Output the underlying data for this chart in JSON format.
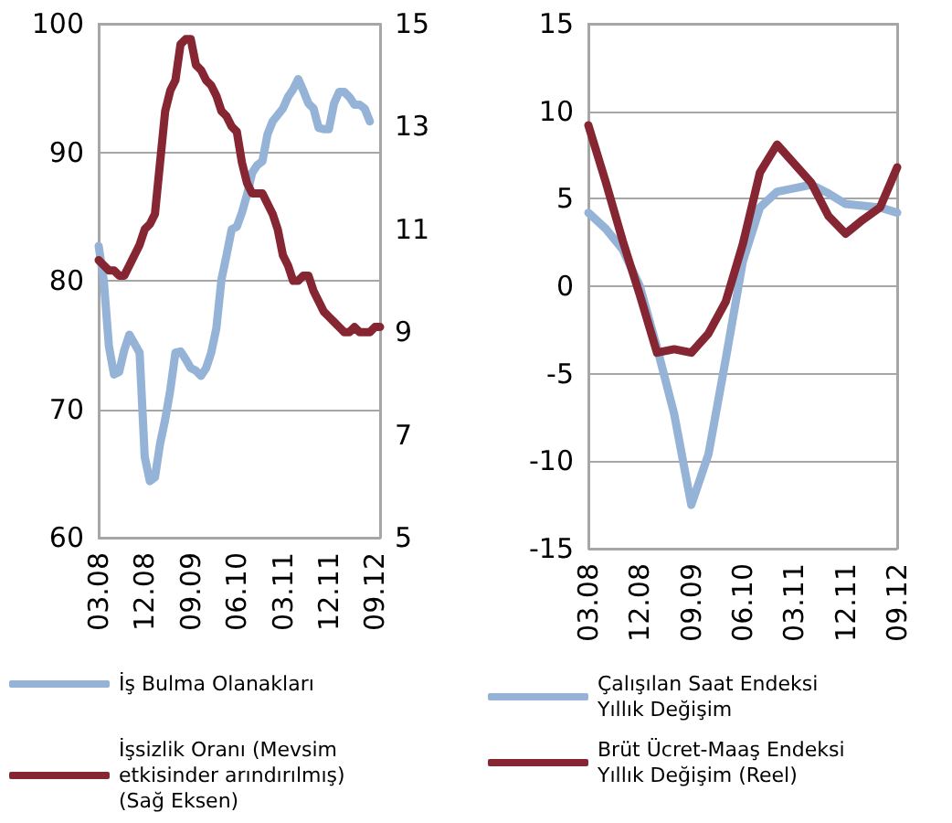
{
  "chart_data": [
    {
      "type": "line",
      "categories": [
        "03.08",
        null,
        null,
        null,
        null,
        null,
        null,
        null,
        null,
        "12.08",
        null,
        null,
        null,
        null,
        null,
        null,
        null,
        null,
        "09.09",
        null,
        null,
        null,
        null,
        null,
        null,
        null,
        null,
        "06.10",
        null,
        null,
        null,
        null,
        null,
        null,
        null,
        null,
        "03.11",
        null,
        null,
        null,
        null,
        null,
        null,
        null,
        null,
        "12.11",
        null,
        null,
        null,
        null,
        null,
        null,
        null,
        null,
        "09.12",
        null
      ],
      "series": [
        {
          "name": "İş Bulma Olanakları",
          "color": "#95b3d7",
          "values": [
            82.7,
            80.0,
            74.9,
            72.7,
            72.9,
            74.6,
            75.8,
            75.1,
            74.4,
            66.3,
            64.4,
            64.7,
            67.3,
            69.2,
            71.5,
            74.4,
            74.5,
            73.9,
            73.2,
            73.0,
            72.6,
            73.2,
            74.4,
            76.3,
            80.1,
            82.0,
            84.0,
            84.2,
            85.3,
            86.7,
            88.4,
            89.0,
            89.3,
            91.4,
            92.4,
            92.9,
            93.4,
            94.3,
            94.9,
            95.7,
            94.8,
            93.8,
            93.4,
            91.9,
            91.8,
            91.8,
            93.8,
            94.7,
            94.7,
            94.3,
            93.7,
            93.7,
            93.4,
            92.4,
            null,
            null
          ]
        },
        {
          "name": "İşsizlik Oranı (Mevsim etkisinder arındırılmış) (Sağ Eksen)",
          "color": "#862633",
          "axis": "y2",
          "values": [
            10.4,
            10.3,
            10.2,
            10.2,
            10.1,
            10.1,
            10.3,
            10.5,
            10.7,
            11.0,
            11.1,
            11.3,
            12.3,
            13.3,
            13.7,
            13.9,
            14.6,
            14.7,
            14.7,
            14.2,
            14.1,
            13.9,
            13.8,
            13.6,
            13.3,
            13.2,
            13.0,
            12.9,
            12.3,
            11.9,
            11.7,
            11.7,
            11.7,
            11.5,
            11.3,
            11.0,
            10.5,
            10.3,
            10.0,
            10.0,
            10.1,
            10.1,
            9.8,
            9.6,
            9.4,
            9.3,
            9.2,
            9.1,
            9.0,
            9.0,
            9.1,
            9.0,
            9.0,
            9.0,
            9.1,
            9.1
          ]
        }
      ],
      "ylim": [
        60,
        100
      ],
      "yticks": [
        60,
        70,
        80,
        90,
        100
      ],
      "y2lim": [
        5,
        15
      ],
      "y2ticks": [
        5,
        7,
        9,
        11,
        13,
        15
      ],
      "grid": "y",
      "legend": "bottom",
      "marker": "none"
    },
    {
      "type": "line",
      "categories": [
        "03.08",
        null,
        null,
        "12.08",
        null,
        null,
        "09.09",
        null,
        null,
        "06.10",
        null,
        null,
        "03.11",
        null,
        null,
        "12.11",
        null,
        null,
        "09.12"
      ],
      "series": [
        {
          "name": "Çalışılan Saat Endeksi Yıllık Değişim",
          "color": "#95b3d7",
          "values": [
            4.2,
            3.3,
            2.1,
            0.0,
            -3.5,
            -7.3,
            -12.5,
            -9.6,
            -4.2,
            1.4,
            4.5,
            5.4,
            5.6,
            5.8,
            5.3,
            4.7,
            4.6,
            4.5,
            4.2
          ]
        },
        {
          "name": "Brüt Ücret-Maaş Endeksi Yıllık Değişim (Reel)",
          "color": "#862633",
          "values": [
            9.2,
            6.0,
            2.6,
            -0.5,
            -3.8,
            -3.6,
            -3.8,
            -2.7,
            -0.9,
            2.4,
            6.5,
            8.1,
            7.0,
            5.9,
            4.0,
            3.0,
            3.8,
            4.5,
            6.8
          ]
        }
      ],
      "ylim": [
        -15,
        15
      ],
      "yticks": [
        -15,
        -10,
        -5,
        0,
        5,
        10,
        15
      ],
      "grid": "y",
      "legend": "bottom",
      "marker": "none"
    }
  ]
}
